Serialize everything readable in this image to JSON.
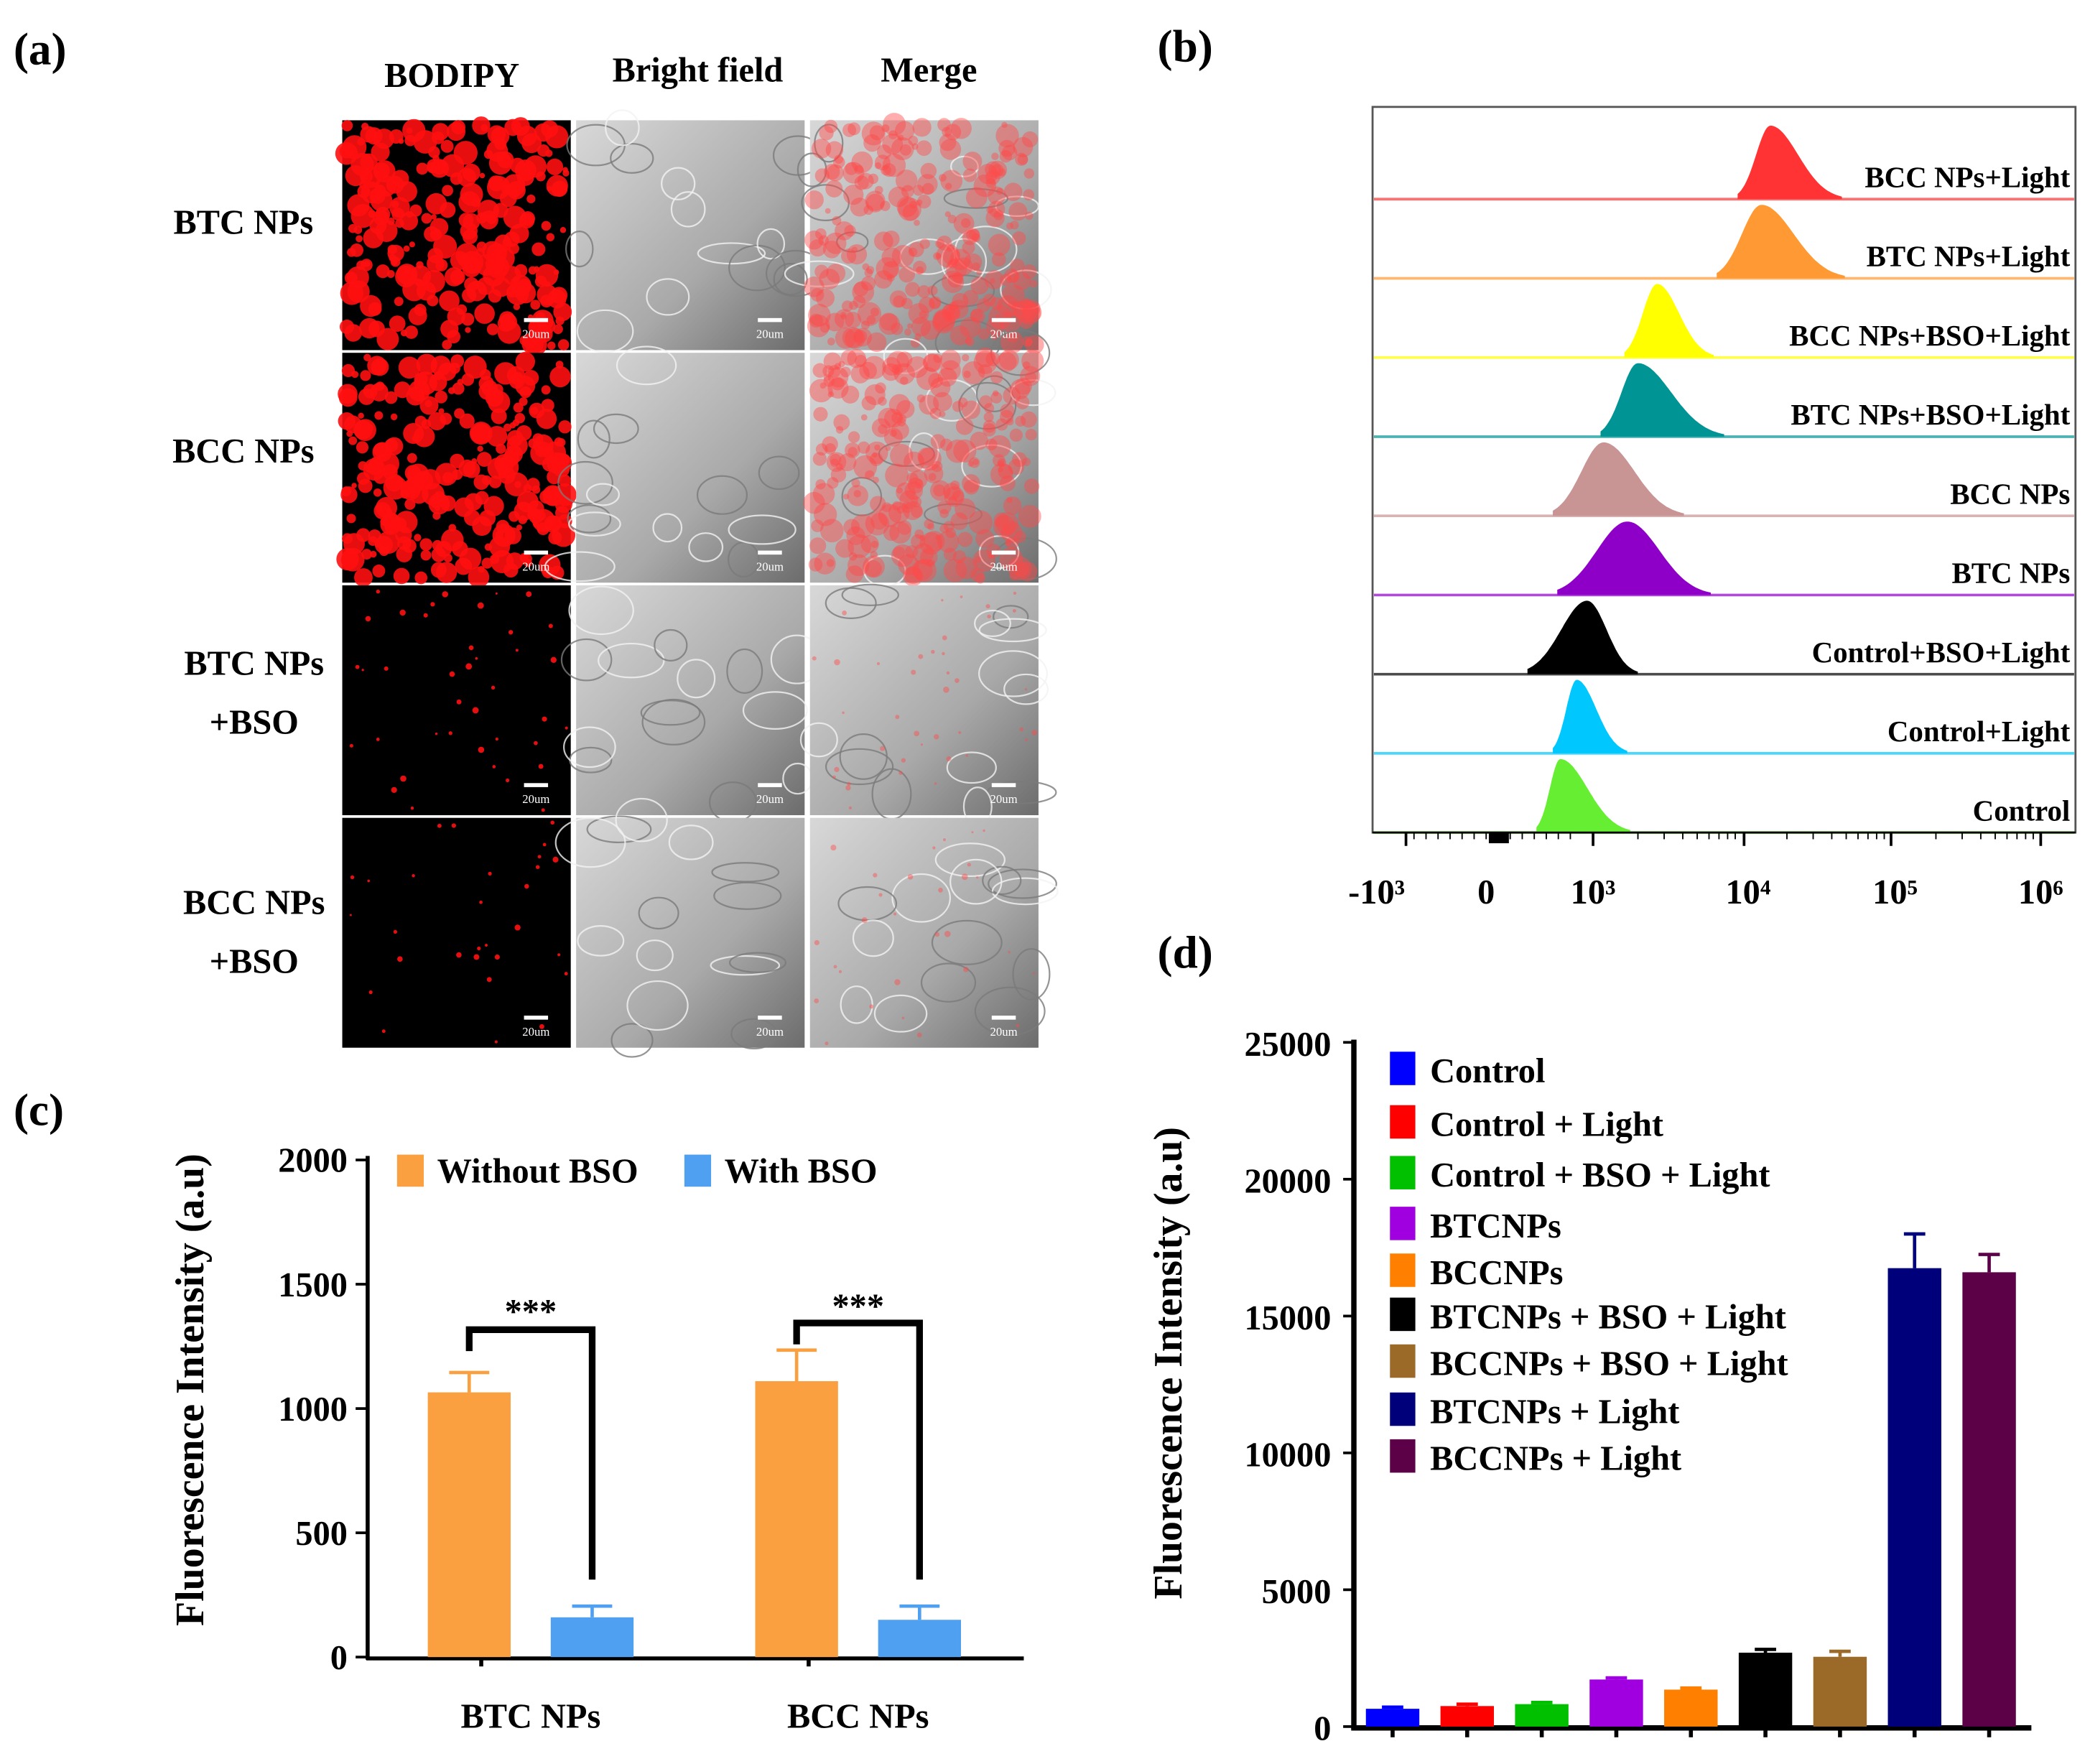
{
  "panel_labels": {
    "a": "(a)",
    "b": "(b)",
    "c": "(c)",
    "d": "(d)"
  },
  "panel_a": {
    "columns": [
      "BODIPY",
      "Bright field",
      "Merge"
    ],
    "rows": [
      {
        "line1": "BTC NPs",
        "line2": ""
      },
      {
        "line1": "BCC NPs",
        "line2": ""
      },
      {
        "line1": "BTC NPs",
        "line2": "+BSO"
      },
      {
        "line1": "BCC NPs",
        "line2": "+BSO"
      }
    ],
    "scale_bar": "20um",
    "red_signal_level": [
      1.0,
      1.0,
      0.12,
      0.08
    ]
  },
  "chart_data": [
    {
      "id": "b",
      "type": "area",
      "title": "",
      "xlabel": "",
      "x_scale": "log",
      "x_tick_labels": [
        "-10³",
        "0",
        "10³",
        "10⁴",
        "10⁵",
        "10⁶"
      ],
      "series": [
        {
          "name": "BCC NPs+Light",
          "color": "#FF3333",
          "peak_log": 4.19,
          "range_log": [
            3.97,
            4.67
          ]
        },
        {
          "name": "BTC NPs+Light",
          "color": "#FF9933",
          "peak_log": 4.13,
          "range_log": [
            3.83,
            4.69
          ]
        },
        {
          "name": "BCC NPs+BSO+Light",
          "color": "#FFFF00",
          "peak_log": 3.43,
          "range_log": [
            3.21,
            3.81
          ]
        },
        {
          "name": "BTC NPs+BSO+Light",
          "color": "#009494",
          "peak_log": 3.3,
          "range_log": [
            3.05,
            3.88
          ]
        },
        {
          "name": "BCC NPs",
          "color": "#C89494",
          "peak_log": 3.07,
          "range_log": [
            2.73,
            3.61
          ]
        },
        {
          "name": "BTC NPs",
          "color": "#8E00C8",
          "peak_log": 3.23,
          "range_log": [
            2.76,
            3.79
          ]
        },
        {
          "name": "Control+BSO+Light",
          "color": "#000000",
          "peak_log": 2.96,
          "range_log": [
            2.56,
            3.3
          ]
        },
        {
          "name": "Control+Light",
          "color": "#00C8FF",
          "peak_log": 2.89,
          "range_log": [
            2.73,
            3.23
          ]
        },
        {
          "name": "Control",
          "color": "#66EE33",
          "peak_log": 2.78,
          "range_log": [
            2.62,
            3.25
          ]
        }
      ]
    },
    {
      "id": "c",
      "type": "bar",
      "title": "",
      "xlabel": "",
      "ylabel": "Fluorescence Intensity (a.u)",
      "ylim": [
        0,
        2000
      ],
      "yticks": [
        "0",
        "500",
        "1000",
        "1500",
        "2000"
      ],
      "categories": [
        "BTC NPs",
        "BCC NPs"
      ],
      "series": [
        {
          "name": "Without BSO",
          "color": "#FBA040",
          "values": [
            1065,
            1110
          ],
          "errors": [
            80,
            125
          ]
        },
        {
          "name": "With BSO",
          "color": "#4FA0F0",
          "values": [
            160,
            150
          ],
          "errors": [
            45,
            55
          ]
        }
      ],
      "significance": [
        "***",
        "***"
      ],
      "legend": "top"
    },
    {
      "id": "d",
      "type": "bar",
      "title": "",
      "xlabel": "",
      "ylabel": "Fluorescence Intensity (a.u)",
      "ylim": [
        0,
        25000
      ],
      "yticks": [
        "0",
        "5000",
        "10000",
        "15000",
        "20000",
        "25000"
      ],
      "categories": [
        "Control",
        "Control + Light",
        "Control + BSO + Light",
        "BTCNPs",
        "BCCNPs",
        "BTCNPs + BSO + Light",
        "BCCNPs + BSO + Light",
        "BTCNPs + Light",
        "BCCNPs + Light"
      ],
      "values": [
        650,
        750,
        820,
        1720,
        1350,
        2700,
        2550,
        16750,
        16600
      ],
      "errors": [
        60,
        70,
        60,
        60,
        60,
        120,
        200,
        1250,
        650
      ],
      "colors": [
        "#0000FF",
        "#FF0000",
        "#00C000",
        "#A000E0",
        "#FF8000",
        "#000000",
        "#9C6A28",
        "#00007A",
        "#5C0048"
      ],
      "legend": "top-left"
    }
  ]
}
